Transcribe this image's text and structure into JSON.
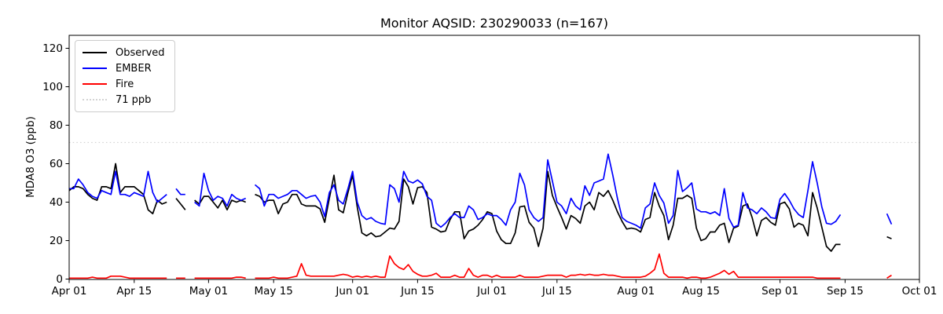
{
  "colors": {
    "observed": "#000000",
    "ember": "#0000ff",
    "fire": "#ff0000",
    "threshold": "#d3d3d3",
    "axis": "#000000",
    "background": "#ffffff"
  },
  "legend": {
    "items": [
      {
        "key": "observed",
        "label": "Observed",
        "color": "#000000",
        "style": "solid"
      },
      {
        "key": "ember",
        "label": "EMBER",
        "color": "#0000ff",
        "style": "solid"
      },
      {
        "key": "fire",
        "label": "Fire",
        "color": "#ff0000",
        "style": "solid"
      },
      {
        "key": "threshold",
        "label": "71 ppb",
        "color": "#d3d3d3",
        "style": "dotted"
      }
    ]
  },
  "chart_data": {
    "type": "line",
    "title": "Monitor AQSID: 230290033 (n=167)",
    "xlabel": "",
    "ylabel": "MDA8 O3 (ppb)",
    "ylim": [
      0,
      126.5
    ],
    "yticks": [
      0,
      20,
      40,
      60,
      80,
      100,
      120
    ],
    "grid": false,
    "legend_position": "upper-left",
    "threshold": {
      "value": 71,
      "label": "71 ppb",
      "color": "#d3d3d3",
      "style": "dotted"
    },
    "x_months": [
      [
        "Apr",
        30
      ],
      [
        "May",
        31
      ],
      [
        "Jun",
        30
      ],
      [
        "Jul",
        31
      ],
      [
        "Aug",
        31
      ],
      [
        "Sep",
        30
      ],
      [
        "Oct",
        1
      ]
    ],
    "xticks": [
      {
        "day": 0,
        "label": "Apr 01"
      },
      {
        "day": 14,
        "label": "Apr 15"
      },
      {
        "day": 30,
        "label": "May 01"
      },
      {
        "day": 44,
        "label": "May 15"
      },
      {
        "day": 61,
        "label": "Jun 01"
      },
      {
        "day": 75,
        "label": "Jun 15"
      },
      {
        "day": 91,
        "label": "Jul 01"
      },
      {
        "day": 105,
        "label": "Jul 15"
      },
      {
        "day": 122,
        "label": "Aug 01"
      },
      {
        "day": 136,
        "label": "Aug 15"
      },
      {
        "day": 153,
        "label": "Sep 01"
      },
      {
        "day": 167,
        "label": "Sep 15"
      },
      {
        "day": 183,
        "label": "Oct 01"
      }
    ],
    "series": [
      {
        "name": "Observed",
        "color": "#000000",
        "values": [
          46,
          48,
          48,
          47,
          44,
          42,
          41,
          48,
          48,
          47,
          60,
          45,
          48,
          48,
          48,
          46,
          44,
          36,
          34,
          41,
          39,
          40,
          null,
          42,
          39,
          36,
          null,
          41,
          39,
          43,
          43,
          40,
          37,
          41,
          36,
          41,
          40,
          41,
          40,
          null,
          44,
          43,
          40,
          41,
          41,
          34,
          39,
          40,
          44,
          44,
          39,
          38,
          38,
          38,
          36.5,
          29.5,
          42,
          54,
          36,
          34.5,
          45,
          54,
          37.5,
          24,
          22.5,
          24,
          22,
          22.5,
          24.5,
          26.5,
          26,
          30,
          52,
          48,
          39,
          47.5,
          48,
          45,
          27,
          26,
          24.5,
          25,
          31,
          35,
          35,
          21,
          25,
          26,
          28,
          31,
          35,
          34,
          25,
          20.5,
          18.5,
          18.5,
          24,
          37.5,
          38,
          29.5,
          26.5,
          17,
          26.5,
          56,
          43.5,
          37.5,
          32,
          26,
          33,
          31.5,
          29,
          38,
          40,
          36,
          45,
          43,
          46,
          41,
          35,
          30,
          26,
          26.5,
          26,
          24.5,
          31,
          32,
          45,
          38,
          33,
          20.5,
          28,
          42,
          42,
          43.5,
          42,
          26.5,
          20,
          21,
          24.5,
          24.5,
          28,
          29,
          19,
          26.5,
          27.5,
          38,
          39,
          32,
          22.5,
          30.5,
          32,
          29.5,
          28,
          39,
          40,
          36.5,
          27,
          29,
          28,
          22.5,
          45,
          37,
          27,
          17,
          14.5,
          18,
          18,
          null,
          null,
          null,
          null,
          null,
          null,
          null,
          null,
          null,
          22,
          21,
          null,
          null,
          null,
          null,
          null,
          null
        ]
      },
      {
        "name": "EMBER",
        "color": "#0000ff",
        "values": [
          47,
          47,
          52,
          49,
          45,
          43,
          42,
          46,
          45,
          44,
          56,
          44,
          44,
          43,
          45,
          44,
          43,
          56,
          45,
          40,
          42,
          44,
          null,
          47,
          44,
          44,
          null,
          40,
          38,
          55,
          46,
          41,
          43,
          42,
          38,
          44,
          42,
          41,
          42,
          null,
          49,
          47,
          38,
          44,
          44,
          42,
          43,
          44,
          46,
          46,
          44,
          42,
          43,
          43.5,
          40,
          32.5,
          45,
          49,
          41,
          39,
          47,
          56,
          40,
          33,
          31,
          32,
          30,
          29,
          28.5,
          49,
          47,
          40,
          56,
          51,
          50,
          51.5,
          49.5,
          43,
          41,
          29,
          27,
          29,
          32,
          34,
          32,
          32,
          38,
          36,
          31,
          32,
          34,
          33,
          33,
          31,
          28,
          36,
          40,
          55,
          49,
          36,
          32,
          30,
          32,
          62,
          51,
          40,
          38,
          34,
          42,
          38,
          36,
          48.5,
          43.5,
          50,
          51,
          52,
          65,
          54,
          42,
          32,
          30,
          29,
          28,
          26.5,
          37,
          39,
          50,
          43.5,
          39.5,
          29,
          33,
          56.5,
          45.5,
          47.5,
          50,
          36.5,
          35,
          35,
          34,
          35,
          33,
          47,
          31.5,
          27,
          28,
          45,
          37,
          36,
          34,
          37,
          35,
          32,
          31.5,
          41.5,
          44.5,
          41,
          36.5,
          33.5,
          32,
          46,
          61,
          50,
          37.5,
          29,
          28.5,
          30,
          33.5,
          null,
          null,
          null,
          null,
          null,
          null,
          null,
          null,
          null,
          34,
          28.5,
          null,
          null,
          null,
          null,
          null,
          null
        ]
      },
      {
        "name": "Fire",
        "color": "#ff0000",
        "values": [
          0.5,
          0.5,
          0.5,
          0.5,
          0.5,
          1,
          0.5,
          0.5,
          0.5,
          1.5,
          1.5,
          1.5,
          1,
          0.5,
          0.5,
          0.5,
          0.5,
          0.5,
          0.5,
          0.5,
          0.5,
          0.5,
          null,
          0.5,
          0.5,
          0.5,
          null,
          0.5,
          0.5,
          0.5,
          0.5,
          0.5,
          0.5,
          0.5,
          0.5,
          0.5,
          1,
          1,
          0.5,
          null,
          0.5,
          0.5,
          0.5,
          0.5,
          1,
          0.5,
          0.5,
          0.5,
          1,
          1.5,
          8,
          2,
          1.5,
          1.5,
          1.5,
          1.5,
          1.5,
          1.5,
          2,
          2.5,
          2,
          1,
          1.5,
          1,
          1.5,
          1,
          1.5,
          1,
          1,
          12,
          8,
          6,
          5,
          7.5,
          4,
          2.5,
          1.5,
          1.5,
          2,
          3,
          1,
          1,
          1,
          2,
          1,
          1,
          5.5,
          2,
          1,
          2,
          2,
          1,
          2,
          1,
          1,
          1,
          1,
          2,
          1,
          1,
          1,
          1,
          1.5,
          2,
          2,
          2,
          2,
          1,
          2,
          2,
          2.5,
          2,
          2.5,
          2,
          2,
          2.5,
          2,
          2,
          1.5,
          1,
          1,
          1,
          1,
          1,
          1.5,
          3,
          5,
          13,
          3,
          1,
          1,
          1,
          1,
          0.5,
          1,
          1,
          0.5,
          0.5,
          1,
          2,
          3,
          4.5,
          2.5,
          4,
          1,
          1,
          1,
          1,
          1,
          1,
          1,
          1,
          1,
          1,
          1,
          1,
          1,
          1,
          1,
          1,
          1,
          0.5,
          0.5,
          0.5,
          0.5,
          0.5,
          0.5,
          null,
          null,
          null,
          null,
          null,
          null,
          null,
          null,
          null,
          0.5,
          2,
          null,
          null,
          null,
          null,
          null,
          null
        ]
      }
    ]
  }
}
